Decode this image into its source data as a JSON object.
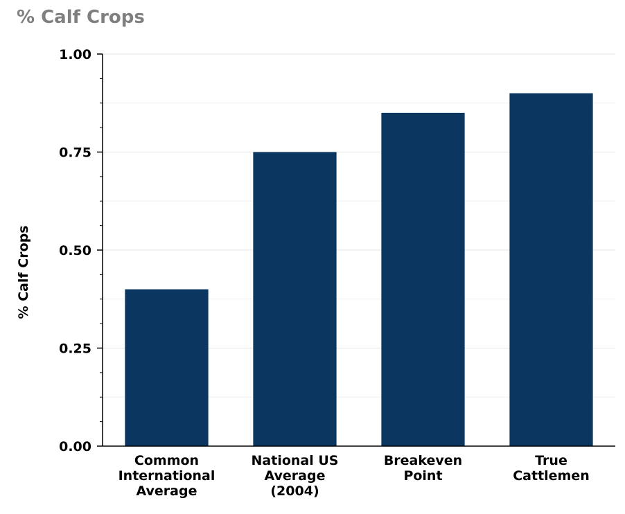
{
  "chart_data": {
    "type": "bar",
    "title": "% Calf Crops",
    "ylabel": "% Calf Crops",
    "xlabel": "",
    "categories": [
      [
        "Common",
        "International",
        "Average"
      ],
      [
        "National US",
        "Average",
        "(2004)"
      ],
      [
        "Breakeven",
        "Point"
      ],
      [
        "True",
        "Cattlemen"
      ]
    ],
    "values": [
      0.4,
      0.75,
      0.85,
      0.9
    ],
    "ylim": [
      0,
      1
    ],
    "yticks": [
      "0.00",
      "0.25",
      "0.50",
      "0.75",
      "1.00"
    ],
    "ytick_values": [
      0,
      0.25,
      0.5,
      0.75,
      1.0
    ],
    "grid": true,
    "legend": "none"
  },
  "colors": {
    "bar": "#0a365f",
    "title": "#7f7f7f",
    "grid": "#e3e3e3",
    "axis": "#000000"
  }
}
